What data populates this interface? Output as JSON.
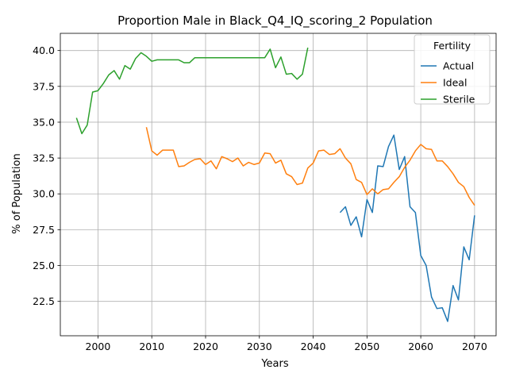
{
  "chart_data": {
    "type": "line",
    "title": "Proportion Male in Black_Q4_IQ_scoring_2 Population",
    "xlabel": "Years",
    "ylabel": "% of Population",
    "xlim": [
      1993,
      2074
    ],
    "ylim": [
      20.1,
      41.2
    ],
    "xticks": [
      2000,
      2010,
      2020,
      2030,
      2040,
      2050,
      2060,
      2070
    ],
    "yticks": [
      22.5,
      25.0,
      27.5,
      30.0,
      32.5,
      35.0,
      37.5,
      40.0
    ],
    "ytick_labels": [
      "22.5",
      "25.0",
      "27.5",
      "30.0",
      "32.5",
      "35.0",
      "37.5",
      "40.0"
    ],
    "grid": true,
    "legend": {
      "title": "Fertility",
      "placement": "top-right"
    },
    "series": [
      {
        "name": "Actual",
        "color": "#1f77b4",
        "x": [
          2045,
          2046,
          2047,
          2048,
          2049,
          2050,
          2051,
          2052,
          2053,
          2054,
          2055,
          2056,
          2057,
          2058,
          2059,
          2060,
          2061,
          2062,
          2063,
          2064,
          2065,
          2066,
          2067,
          2068,
          2069,
          2070
        ],
        "y": [
          28.7,
          29.1,
          27.8,
          28.4,
          27.0,
          29.6,
          28.7,
          31.95,
          31.9,
          33.3,
          34.1,
          31.7,
          32.6,
          29.1,
          28.7,
          25.7,
          25.0,
          22.8,
          22.0,
          22.05,
          21.1,
          23.6,
          22.6,
          26.3,
          25.4,
          28.5
        ]
      },
      {
        "name": "Ideal",
        "color": "#ff7f0e",
        "x": [
          2009,
          2010,
          2011,
          2012,
          2013,
          2014,
          2015,
          2016,
          2017,
          2018,
          2019,
          2020,
          2021,
          2022,
          2023,
          2024,
          2025,
          2026,
          2027,
          2028,
          2029,
          2030,
          2031,
          2032,
          2033,
          2034,
          2035,
          2036,
          2037,
          2038,
          2039,
          2040,
          2041,
          2042,
          2043,
          2044,
          2045,
          2046,
          2047,
          2048,
          2049,
          2050,
          2051,
          2052,
          2053,
          2054,
          2055,
          2056,
          2057,
          2058,
          2059,
          2060,
          2061,
          2062,
          2063,
          2064,
          2065,
          2066,
          2067,
          2068,
          2069,
          2070
        ],
        "y": [
          34.65,
          33.0,
          32.7,
          33.05,
          33.05,
          33.05,
          31.9,
          31.95,
          32.2,
          32.4,
          32.45,
          32.05,
          32.3,
          31.75,
          32.6,
          32.45,
          32.25,
          32.5,
          31.95,
          32.2,
          32.05,
          32.15,
          32.85,
          32.8,
          32.15,
          32.35,
          31.4,
          31.2,
          30.65,
          30.75,
          31.8,
          32.15,
          33.0,
          33.05,
          32.75,
          32.8,
          33.15,
          32.5,
          32.1,
          31.0,
          30.8,
          29.95,
          30.35,
          30.0,
          30.3,
          30.35,
          30.8,
          31.2,
          31.85,
          32.35,
          33.0,
          33.45,
          33.15,
          33.1,
          32.3,
          32.3,
          31.9,
          31.4,
          30.8,
          30.5,
          29.75,
          29.2
        ]
      },
      {
        "name": "Sterile",
        "color": "#2ca02c",
        "x": [
          1996,
          1997,
          1998,
          1999,
          2000,
          2001,
          2002,
          2003,
          2004,
          2005,
          2006,
          2007,
          2008,
          2009,
          2010,
          2011,
          2012,
          2013,
          2014,
          2015,
          2016,
          2017,
          2018,
          2019,
          2020,
          2021,
          2022,
          2023,
          2024,
          2025,
          2026,
          2027,
          2028,
          2029,
          2030,
          2031,
          2032,
          2033,
          2034,
          2035,
          2036,
          2037,
          2038,
          2039
        ],
        "y": [
          35.3,
          34.2,
          34.8,
          37.1,
          37.2,
          37.7,
          38.3,
          38.6,
          38.0,
          38.95,
          38.7,
          39.45,
          39.85,
          39.6,
          39.25,
          39.35,
          39.35,
          39.35,
          39.35,
          39.35,
          39.15,
          39.15,
          39.5,
          39.5,
          39.5,
          39.5,
          39.5,
          39.5,
          39.5,
          39.5,
          39.5,
          39.5,
          39.5,
          39.5,
          39.5,
          39.5,
          40.1,
          38.8,
          39.55,
          38.35,
          38.4,
          38.0,
          38.35,
          40.2
        ]
      }
    ]
  }
}
